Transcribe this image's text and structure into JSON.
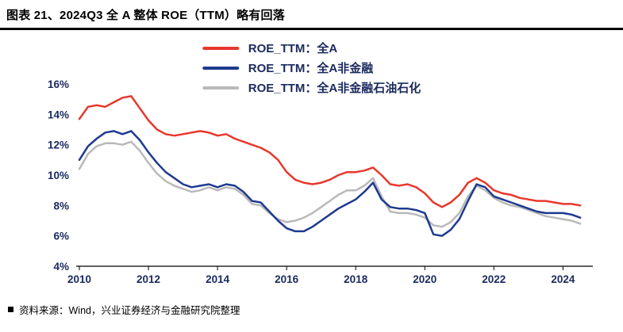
{
  "header": {
    "title": "图表 21、2024Q3 全 A 整体 ROE（TTM）略有回落"
  },
  "source": {
    "text": "资料来源：Wind，兴业证券经济与金融研究院整理"
  },
  "chart_data": {
    "type": "line",
    "title": "",
    "xlabel": "",
    "ylabel": "",
    "grid": false,
    "legend_position": "top-center",
    "xlim": [
      2010,
      2024.75
    ],
    "ylim": [
      4,
      16
    ],
    "yticks": [
      4,
      6,
      8,
      10,
      12,
      14,
      16
    ],
    "ytick_suffix": "%",
    "xticks": [
      2010,
      2012,
      2014,
      2016,
      2018,
      2020,
      2022,
      2024
    ],
    "x": [
      2010,
      2010.25,
      2010.5,
      2010.75,
      2011,
      2011.25,
      2011.5,
      2011.75,
      2012,
      2012.25,
      2012.5,
      2012.75,
      2013,
      2013.25,
      2013.5,
      2013.75,
      2014,
      2014.25,
      2014.5,
      2014.75,
      2015,
      2015.25,
      2015.5,
      2015.75,
      2016,
      2016.25,
      2016.5,
      2016.75,
      2017,
      2017.25,
      2017.5,
      2017.75,
      2018,
      2018.25,
      2018.5,
      2018.75,
      2019,
      2019.25,
      2019.5,
      2019.75,
      2020,
      2020.25,
      2020.5,
      2020.75,
      2021,
      2021.25,
      2021.5,
      2021.75,
      2022,
      2022.25,
      2022.5,
      2022.75,
      2023,
      2023.25,
      2023.5,
      2023.75,
      2024,
      2024.25,
      2024.5
    ],
    "series": [
      {
        "key": "all_a",
        "name": "ROE_TTM：全A",
        "color": "#e8372c",
        "values": [
          13.7,
          14.5,
          14.6,
          14.5,
          14.8,
          15.1,
          15.2,
          14.4,
          13.6,
          13.0,
          12.7,
          12.6,
          12.7,
          12.8,
          12.9,
          12.8,
          12.6,
          12.7,
          12.4,
          12.2,
          12.0,
          11.8,
          11.5,
          11.0,
          10.2,
          9.7,
          9.5,
          9.4,
          9.5,
          9.7,
          10.0,
          10.2,
          10.2,
          10.3,
          10.5,
          10.0,
          9.4,
          9.3,
          9.4,
          9.2,
          8.8,
          8.2,
          7.9,
          8.2,
          8.7,
          9.5,
          9.8,
          9.5,
          9.0,
          8.8,
          8.7,
          8.5,
          8.4,
          8.3,
          8.3,
          8.2,
          8.1,
          8.1,
          8.0
        ]
      },
      {
        "key": "nonfin",
        "name": "ROE_TTM：全A非金融",
        "color": "#1e3a8f",
        "values": [
          11.0,
          11.9,
          12.4,
          12.8,
          12.9,
          12.7,
          12.9,
          12.3,
          11.5,
          10.8,
          10.2,
          9.8,
          9.4,
          9.2,
          9.3,
          9.4,
          9.2,
          9.4,
          9.3,
          8.9,
          8.3,
          8.2,
          7.6,
          7.0,
          6.5,
          6.3,
          6.3,
          6.6,
          7.0,
          7.4,
          7.8,
          8.1,
          8.4,
          8.9,
          9.5,
          8.4,
          7.9,
          7.8,
          7.8,
          7.7,
          7.5,
          6.1,
          6.0,
          6.4,
          7.1,
          8.3,
          9.4,
          9.2,
          8.6,
          8.4,
          8.2,
          8.0,
          7.8,
          7.6,
          7.5,
          7.5,
          7.5,
          7.4,
          7.2
        ]
      },
      {
        "key": "nonfin_ex_petro",
        "name": "ROE_TTM：全A非金融石油石化",
        "color": "#b9b9b9",
        "values": [
          10.4,
          11.4,
          11.9,
          12.1,
          12.1,
          12.0,
          12.2,
          11.6,
          10.8,
          10.1,
          9.6,
          9.3,
          9.1,
          8.9,
          9.0,
          9.2,
          9.0,
          9.2,
          9.1,
          8.7,
          8.1,
          8.0,
          7.5,
          7.1,
          6.9,
          7.0,
          7.2,
          7.5,
          7.9,
          8.3,
          8.7,
          9.0,
          9.0,
          9.3,
          9.8,
          8.6,
          7.6,
          7.5,
          7.5,
          7.4,
          7.2,
          6.7,
          6.6,
          6.9,
          7.5,
          8.6,
          9.3,
          9.0,
          8.5,
          8.2,
          8.0,
          7.9,
          7.7,
          7.5,
          7.3,
          7.2,
          7.1,
          7.0,
          6.8
        ]
      }
    ]
  }
}
